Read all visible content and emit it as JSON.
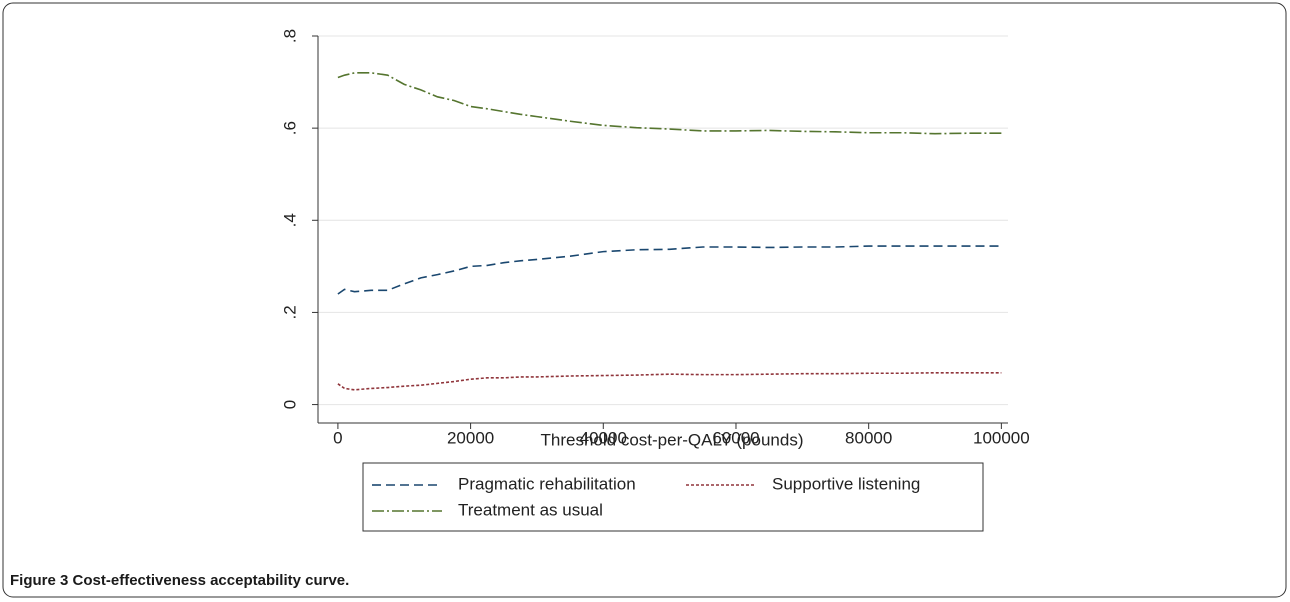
{
  "caption": {
    "label": "Figure 3",
    "text": "Cost-effectiveness acceptability curve."
  },
  "chart_data": {
    "type": "line",
    "xlabel": "Threshold cost-per-QALY (pounds)",
    "x": [
      0,
      1000,
      2500,
      5000,
      7500,
      10000,
      12500,
      15000,
      17500,
      20000,
      22500,
      25000,
      27500,
      30000,
      35000,
      40000,
      45000,
      50000,
      55000,
      60000,
      65000,
      70000,
      75000,
      80000,
      85000,
      90000,
      95000,
      100000
    ],
    "series": [
      {
        "name": "Pragmatic rehabilitation",
        "color": "#1a476f",
        "dash": "9,5",
        "values": [
          0.24,
          0.25,
          0.245,
          0.248,
          0.248,
          0.262,
          0.275,
          0.282,
          0.29,
          0.3,
          0.302,
          0.308,
          0.312,
          0.315,
          0.322,
          0.332,
          0.336,
          0.337,
          0.342,
          0.342,
          0.341,
          0.342,
          0.342,
          0.344,
          0.344,
          0.344,
          0.344,
          0.344
        ]
      },
      {
        "name": "Supportive listening",
        "color": "#90353b",
        "dash": "3,2",
        "values": [
          0.045,
          0.035,
          0.032,
          0.035,
          0.037,
          0.04,
          0.042,
          0.046,
          0.05,
          0.055,
          0.058,
          0.058,
          0.06,
          0.06,
          0.062,
          0.063,
          0.064,
          0.066,
          0.065,
          0.065,
          0.066,
          0.067,
          0.067,
          0.068,
          0.068,
          0.069,
          0.069,
          0.069
        ]
      },
      {
        "name": "Treatment as usual",
        "color": "#55752f",
        "dash": "12,3,2,3",
        "values": [
          0.71,
          0.715,
          0.72,
          0.72,
          0.715,
          0.695,
          0.683,
          0.668,
          0.66,
          0.647,
          0.642,
          0.636,
          0.63,
          0.625,
          0.615,
          0.606,
          0.601,
          0.598,
          0.594,
          0.594,
          0.595,
          0.593,
          0.592,
          0.59,
          0.59,
          0.588,
          0.589,
          0.589
        ]
      }
    ],
    "xlim": [
      -3000,
      101000
    ],
    "ylim": [
      -0.04,
      0.8
    ],
    "xticks": [
      0,
      20000,
      40000,
      60000,
      80000,
      100000
    ],
    "yticks": [
      0,
      {
        "value": 0.2,
        "label": ".2"
      },
      {
        "value": 0.4,
        "label": ".4"
      },
      {
        "value": 0.6,
        "label": ".6"
      },
      {
        "value": 0.8,
        "label": ".8"
      }
    ],
    "grid": true,
    "legend": "bottom"
  }
}
